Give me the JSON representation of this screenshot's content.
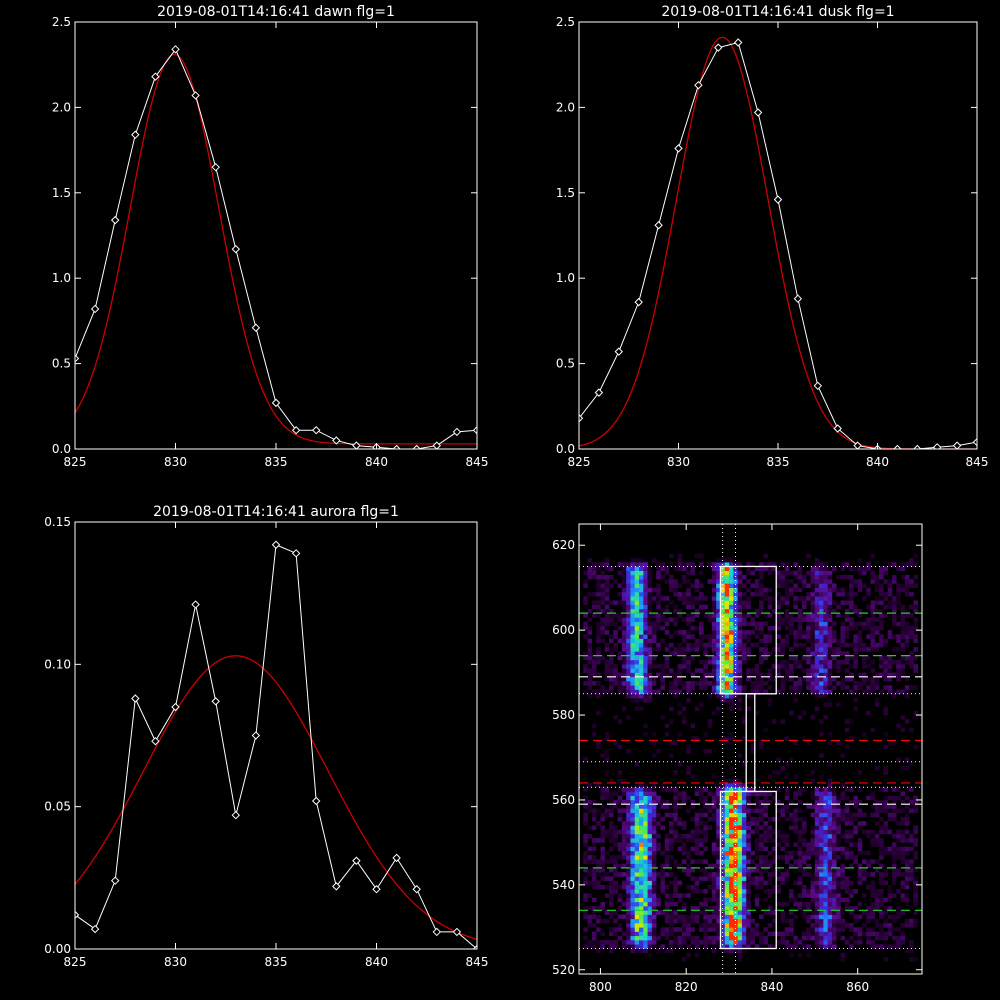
{
  "chart_data": [
    {
      "type": "line",
      "title": "2019-08-01T14:16:41 dawn flg=1",
      "xlim": [
        825,
        845
      ],
      "ylim": [
        0.0,
        2.5
      ],
      "xticks": [
        825,
        830,
        835,
        840,
        845
      ],
      "xtick_labels": [
        "825",
        "830",
        "835",
        "840",
        "845"
      ],
      "yticks": [
        0.0,
        0.5,
        1.0,
        1.5,
        2.0,
        2.5
      ],
      "ytick_labels": [
        "0.0",
        "0.5",
        "1.0",
        "1.5",
        "2.0",
        "2.5"
      ],
      "series": [
        {
          "color": "#ffffff",
          "marker": "diamond",
          "x": [
            825,
            826,
            827,
            828,
            829,
            830,
            831,
            832,
            833,
            834,
            835,
            836,
            837,
            838,
            839,
            840,
            841,
            842,
            843,
            844,
            845
          ],
          "y": [
            0.53,
            0.82,
            1.34,
            1.84,
            2.18,
            2.34,
            2.07,
            1.65,
            1.17,
            0.71,
            0.27,
            0.11,
            0.11,
            0.05,
            0.02,
            0.01,
            0.0,
            0.0,
            0.02,
            0.1,
            0.11
          ]
        },
        {
          "color": "#cc0000",
          "fit": "gaussian",
          "amplitude": 2.28,
          "center": 829.95,
          "sigma": 2.2,
          "offset": 0.03
        }
      ]
    },
    {
      "type": "line",
      "title": "2019-08-01T14:16:41 dusk flg=1",
      "xlim": [
        825,
        845
      ],
      "ylim": [
        0.0,
        2.5
      ],
      "xticks": [
        825,
        830,
        835,
        840,
        845
      ],
      "xtick_labels": [
        "825",
        "830",
        "835",
        "840",
        "845"
      ],
      "yticks": [
        0.0,
        0.5,
        1.0,
        1.5,
        2.0,
        2.5
      ],
      "ytick_labels": [
        "0.0",
        "0.5",
        "1.0",
        "1.5",
        "2.0",
        "2.5"
      ],
      "series": [
        {
          "color": "#ffffff",
          "marker": "diamond",
          "x": [
            825,
            826,
            827,
            828,
            829,
            830,
            831,
            832,
            833,
            834,
            835,
            836,
            837,
            838,
            839,
            840,
            841,
            842,
            843,
            844,
            845
          ],
          "y": [
            0.18,
            0.33,
            0.57,
            0.86,
            1.31,
            1.76,
            2.13,
            2.35,
            2.38,
            1.97,
            1.46,
            0.88,
            0.37,
            0.12,
            0.02,
            0.0,
            0.0,
            0.0,
            0.01,
            0.02,
            0.04
          ]
        },
        {
          "color": "#cc0000",
          "fit": "gaussian",
          "amplitude": 2.41,
          "center": 832.2,
          "sigma": 2.3,
          "offset": 0.0
        }
      ]
    },
    {
      "type": "line",
      "title": "2019-08-01T14:16:41 aurora flg=1",
      "xlim": [
        825,
        845
      ],
      "ylim": [
        0.0,
        0.15
      ],
      "xticks": [
        825,
        830,
        835,
        840,
        845
      ],
      "xtick_labels": [
        "825",
        "830",
        "835",
        "840",
        "845"
      ],
      "yticks": [
        0.0,
        0.05,
        0.1,
        0.15
      ],
      "ytick_labels": [
        "0.00",
        "0.05",
        "0.10",
        "0.15"
      ],
      "series": [
        {
          "color": "#ffffff",
          "marker": "diamond",
          "x": [
            825,
            826,
            827,
            828,
            829,
            830,
            831,
            832,
            833,
            834,
            835,
            836,
            837,
            838,
            839,
            840,
            841,
            842,
            843,
            844,
            845
          ],
          "y": [
            0.012,
            0.007,
            0.024,
            0.088,
            0.073,
            0.085,
            0.121,
            0.087,
            0.047,
            0.075,
            0.142,
            0.139,
            0.052,
            0.022,
            0.031,
            0.021,
            0.032,
            0.021,
            0.006,
            0.006,
            0.0
          ]
        },
        {
          "color": "#cc0000",
          "fit": "gaussian",
          "amplitude": 0.103,
          "center": 833.0,
          "sigma": 4.6,
          "offset": 0.0
        }
      ]
    },
    {
      "type": "heatmap",
      "title": "",
      "xlim": [
        795,
        875
      ],
      "ylim": [
        519,
        625
      ],
      "xticks": [
        800,
        820,
        840,
        860
      ],
      "xtick_labels": [
        "800",
        "820",
        "840",
        "860"
      ],
      "yticks": [
        520,
        540,
        560,
        580,
        600,
        620
      ],
      "ytick_labels": [
        "520",
        "540",
        "560",
        "580",
        "600",
        "620"
      ],
      "colormap": [
        "#000000",
        "#2a0038",
        "#5a0a8a",
        "#3c2ad8",
        "#1e8cff",
        "#1ed4c8",
        "#5aeb46",
        "#e8e600",
        "#ff2a00"
      ],
      "bands": [
        {
          "x": 808.5,
          "width": 3.2,
          "y": [
            585,
            615
          ],
          "intensity": 0.62
        },
        {
          "x": 809.5,
          "width": 3.6,
          "y": [
            526,
            562
          ],
          "intensity": 0.72
        },
        {
          "x": 829.5,
          "width": 3.0,
          "y": [
            585,
            615
          ],
          "intensity": 0.92
        },
        {
          "x": 831.0,
          "width": 3.6,
          "y": [
            526,
            563
          ],
          "intensity": 1.0
        },
        {
          "x": 851.5,
          "width": 3.0,
          "y": [
            585,
            615
          ],
          "intensity": 0.28
        },
        {
          "x": 852.5,
          "width": 3.4,
          "y": [
            526,
            562
          ],
          "intensity": 0.34
        }
      ],
      "hot_pixels": [
        [
          831,
          558
        ],
        [
          832,
          553
        ]
      ],
      "vertical_dotted_lines": [
        828.5,
        831.5
      ],
      "horizontal_dotted_lines": [
        525,
        563,
        569,
        585,
        615
      ],
      "boxes": [
        {
          "color": "#ffffff",
          "x": [
            828,
            841
          ],
          "y": [
            585,
            615
          ]
        },
        {
          "color": "#ffffff",
          "x": [
            828,
            841
          ],
          "y": [
            525,
            562
          ]
        },
        {
          "color": "#ffffff",
          "x": [
            834,
            836
          ],
          "y": [
            562,
            585
          ]
        }
      ],
      "dashed_lines": [
        {
          "color": "#1ed41e",
          "y": 604
        },
        {
          "color": "#1ed41e",
          "y": 594
        },
        {
          "color": "#ffffff",
          "y": 589
        },
        {
          "color": "#ff0000",
          "y": 574
        },
        {
          "color": "#ff0000",
          "y": 564
        },
        {
          "color": "#ffffff",
          "y": 559
        },
        {
          "color": "#1ed41e",
          "y": 544
        },
        {
          "color": "#1ed41e",
          "y": 534
        }
      ]
    }
  ]
}
